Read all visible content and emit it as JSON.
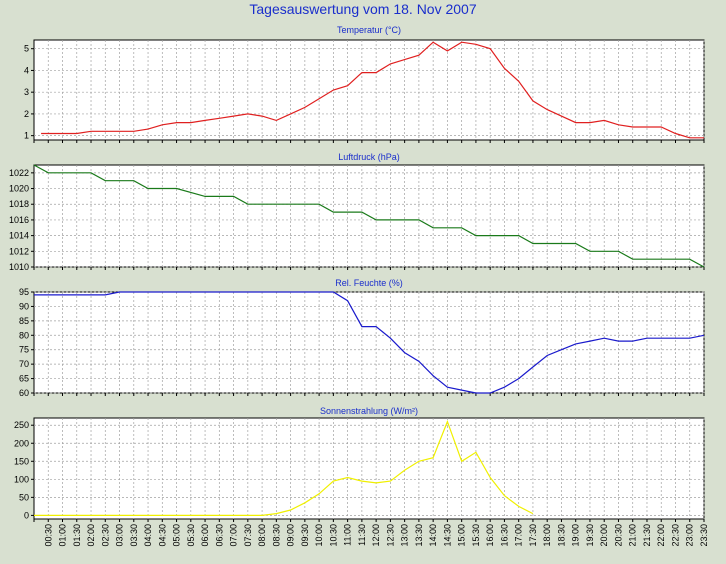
{
  "page": {
    "title": "Tagesauswertung vom 18. Nov 2007"
  },
  "colors": {
    "background": "#d8e0d0",
    "plot_bg": "#ffffff",
    "grid": "#a0a0a0",
    "title_text": "#1a2ecc"
  },
  "chart_data": [
    {
      "type": "line",
      "title": "Temperatur (°C)",
      "color": "#e02020",
      "ylim": [
        0.8,
        5.4
      ],
      "yticks": [
        1,
        2,
        3,
        4,
        5
      ],
      "x": [
        0.25,
        0.5,
        1,
        1.5,
        2,
        2.5,
        3,
        3.5,
        4,
        4.5,
        5,
        5.5,
        6,
        6.5,
        7,
        7.5,
        8,
        8.5,
        9,
        9.5,
        10,
        10.5,
        11,
        11.5,
        12,
        12.5,
        13,
        13.5,
        14,
        14.5,
        15,
        15.5,
        16,
        16.5,
        17,
        17.5,
        18,
        18.5,
        19,
        19.5,
        20,
        20.5,
        21,
        21.5,
        22,
        22.5,
        23,
        23.5
      ],
      "y": [
        1.1,
        1.1,
        1.1,
        1.1,
        1.2,
        1.2,
        1.2,
        1.2,
        1.3,
        1.5,
        1.6,
        1.6,
        1.7,
        1.8,
        1.9,
        2.0,
        1.9,
        1.7,
        2.0,
        2.3,
        2.7,
        3.1,
        3.3,
        3.9,
        3.9,
        4.3,
        4.5,
        4.7,
        5.3,
        4.9,
        5.3,
        5.2,
        5.0,
        4.1,
        3.5,
        2.6,
        2.2,
        1.9,
        1.6,
        1.6,
        1.7,
        1.5,
        1.4,
        1.4,
        1.4,
        1.1,
        0.9,
        0.9
      ]
    },
    {
      "type": "line",
      "title": "Luftdruck (hPa)",
      "color": "#1a7a1a",
      "ylim": [
        1010,
        1023
      ],
      "yticks": [
        1010,
        1012,
        1014,
        1016,
        1018,
        1020,
        1022
      ],
      "x": [
        0,
        0.5,
        1,
        2,
        2.5,
        3,
        3.5,
        4,
        4.5,
        5,
        6,
        6.5,
        7,
        7.5,
        8,
        8.5,
        9,
        10,
        10.5,
        11,
        11.5,
        12,
        12.5,
        13,
        13.5,
        14,
        14.5,
        15,
        15.5,
        16,
        16.5,
        17,
        17.5,
        18,
        18.5,
        19,
        19.5,
        20,
        20.5,
        21,
        22,
        22.5,
        23,
        23.5
      ],
      "y": [
        1023,
        1022,
        1022,
        1022,
        1021,
        1021,
        1021,
        1020,
        1020,
        1020,
        1019,
        1019,
        1019,
        1018,
        1018,
        1018,
        1018,
        1018,
        1017,
        1017,
        1017,
        1016,
        1016,
        1016,
        1016,
        1015,
        1015,
        1015,
        1014,
        1014,
        1014,
        1014,
        1013,
        1013,
        1013,
        1013,
        1012,
        1012,
        1012,
        1011,
        1011,
        1011,
        1011,
        1010
      ]
    },
    {
      "type": "line",
      "title": "Rel. Feuchte (%)",
      "color": "#1a1acc",
      "ylim": [
        60,
        95
      ],
      "yticks": [
        60,
        65,
        70,
        75,
        80,
        85,
        90,
        95
      ],
      "x": [
        0,
        2.5,
        3,
        10,
        10.5,
        11,
        11.5,
        12,
        12.5,
        13,
        13.5,
        14,
        14.5,
        15,
        15.5,
        16,
        16.5,
        17,
        17.5,
        18,
        18.5,
        19,
        19.5,
        20,
        20.5,
        21,
        21.5,
        22,
        22.5,
        23,
        23.5
      ],
      "y": [
        94,
        94,
        95,
        95,
        95,
        92,
        83,
        83,
        79,
        74,
        71,
        66,
        62,
        61,
        60,
        60,
        62,
        65,
        69,
        73,
        75,
        77,
        78,
        79,
        78,
        78,
        79,
        79,
        79,
        79,
        80
      ]
    },
    {
      "type": "line",
      "title": "Sonnenstrahlung (W/m²)",
      "color": "#f0f000",
      "ylim": [
        -10,
        270
      ],
      "yticks": [
        0,
        50,
        100,
        150,
        200,
        250
      ],
      "x": [
        0,
        7.5,
        8,
        8.5,
        9,
        9.5,
        10,
        10.5,
        11,
        11.5,
        12,
        12.5,
        13,
        13.5,
        14,
        14.5,
        15,
        15.5,
        16,
        16.5,
        17,
        17.5
      ],
      "y": [
        0,
        0,
        0,
        5,
        15,
        35,
        60,
        95,
        105,
        95,
        90,
        95,
        125,
        150,
        160,
        260,
        150,
        175,
        105,
        55,
        25,
        5
      ]
    }
  ],
  "x_axis": {
    "labels": [
      "00:30",
      "01:00",
      "01:30",
      "02:00",
      "02:30",
      "03:00",
      "03:30",
      "04:00",
      "04:30",
      "05:00",
      "05:30",
      "06:00",
      "06:30",
      "07:00",
      "07:30",
      "08:00",
      "08:30",
      "09:00",
      "09:30",
      "10:00",
      "10:30",
      "11:00",
      "11:30",
      "12:00",
      "12:30",
      "13:00",
      "13:30",
      "14:00",
      "14:30",
      "15:00",
      "15:30",
      "16:00",
      "16:30",
      "17:00",
      "17:30",
      "18:00",
      "18:30",
      "19:00",
      "19:30",
      "20:00",
      "20:30",
      "21:00",
      "21:30",
      "22:00",
      "22:30",
      "23:00",
      "23:30"
    ]
  }
}
